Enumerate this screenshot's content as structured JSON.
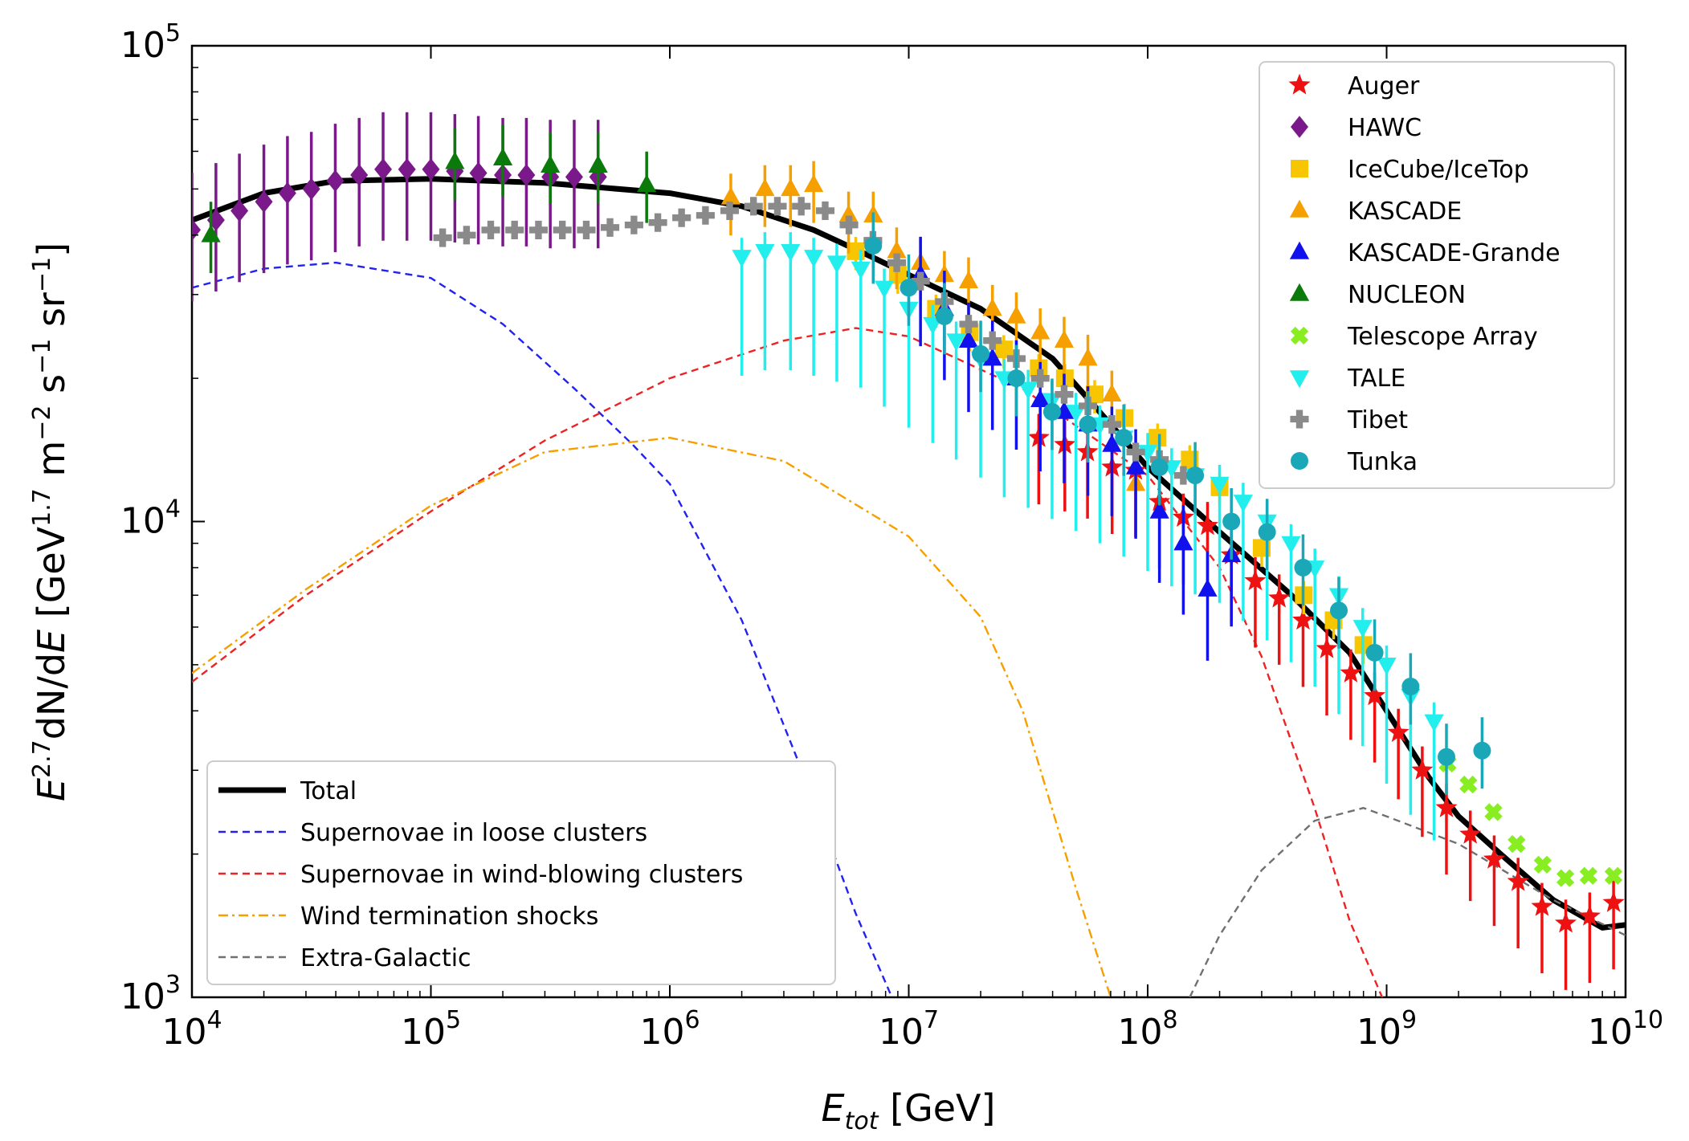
{
  "chart_data": {
    "type": "scatter",
    "xscale": "log",
    "yscale": "log",
    "xlim": [
      10000,
      10000000000
    ],
    "ylim": [
      1000,
      100000
    ],
    "x_label_prefix": "E",
    "x_label_sub": "tot",
    "x_label_unit": "[GeV]",
    "y_label_prefix": "E",
    "y_label_exp": "2.7",
    "y_label_mid": "dN/d",
    "y_label_E": "E",
    "y_label_unit_open": "[GeV",
    "y_label_unit_exp": "1.7",
    "y_label_m": "m",
    "y_label_m_exp": "−2",
    "y_label_s": "s",
    "y_label_s_exp": "−1",
    "y_label_sr": "sr",
    "y_label_sr_exp": "−1",
    "y_label_close": "]",
    "x_ticks": [
      {
        "base": "10",
        "exp": "4",
        "value": 10000
      },
      {
        "base": "10",
        "exp": "5",
        "value": 100000
      },
      {
        "base": "10",
        "exp": "6",
        "value": 1000000
      },
      {
        "base": "10",
        "exp": "7",
        "value": 10000000
      },
      {
        "base": "10",
        "exp": "8",
        "value": 100000000
      },
      {
        "base": "10",
        "exp": "9",
        "value": 1000000000
      },
      {
        "base": "10",
        "exp": "10",
        "value": 10000000000
      }
    ],
    "y_ticks": [
      {
        "base": "10",
        "exp": "3",
        "value": 1000
      },
      {
        "base": "10",
        "exp": "4",
        "value": 10000
      },
      {
        "base": "10",
        "exp": "5",
        "value": 100000
      }
    ],
    "curves": [
      {
        "name": "Total",
        "color": "#000000",
        "style": "solid",
        "x": [
          10000,
          20000,
          40000,
          100000,
          300000,
          1000000,
          2000000,
          4000000,
          7000000,
          10000000,
          20000000,
          40000000,
          70000000,
          100000000,
          200000000,
          400000000,
          700000000,
          1000000000,
          1500000000,
          2000000000,
          3000000000,
          5000000000,
          8000000000,
          10000000000
        ],
        "y": [
          43000,
          49000,
          52000,
          52500,
          51500,
          49000,
          46000,
          41000,
          36000,
          33000,
          28000,
          22000,
          16000,
          13000,
          9500,
          7000,
          5300,
          4000,
          2900,
          2400,
          2000,
          1600,
          1400,
          1420
        ]
      },
      {
        "name": "Supernovae in loose clusters",
        "color": "#2222ee",
        "style": "dash",
        "x": [
          10000,
          20000,
          40000,
          100000,
          200000,
          400000,
          700000,
          1000000,
          2000000,
          4000000,
          6000000,
          8500000
        ],
        "y": [
          31000,
          34000,
          35000,
          32500,
          26000,
          19000,
          14500,
          12000,
          6200,
          2600,
          1500,
          1000
        ]
      },
      {
        "name": "Supernovae in wind-blowing clusters",
        "color": "#ee2222",
        "style": "dash",
        "x": [
          10000,
          30000,
          100000,
          300000,
          1000000,
          3000000,
          6000000,
          10000000,
          30000000,
          100000000,
          200000000,
          300000000,
          500000000,
          700000000,
          1000000000
        ],
        "y": [
          4600,
          7000,
          10500,
          14800,
          20000,
          24000,
          25500,
          24500,
          19000,
          12500,
          8000,
          5200,
          2500,
          1450,
          950
        ]
      },
      {
        "name": "Wind termination shocks",
        "color": "#f5a000",
        "style": "dashdot",
        "x": [
          10000,
          30000,
          100000,
          300000,
          1000000,
          3000000,
          10000000,
          20000000,
          30000000,
          50000000,
          70000000
        ],
        "y": [
          4800,
          7200,
          10800,
          14000,
          15000,
          13400,
          9300,
          6300,
          4000,
          1700,
          1000
        ]
      },
      {
        "name": "Extra-Galactic",
        "color": "#707070",
        "style": "dash",
        "x": [
          150000000,
          200000000,
          300000000,
          500000000,
          800000000,
          1000000000,
          2000000000,
          5000000000,
          10000000000
        ],
        "y": [
          1000,
          1350,
          1850,
          2350,
          2500,
          2400,
          2100,
          1600,
          1350
        ]
      }
    ],
    "series": [
      {
        "name": "Auger",
        "marker": "star",
        "color": "#ee1111",
        "x": [
          35000000,
          45000000,
          56000000,
          71000000,
          89000000,
          112000000,
          141000000,
          178000000,
          224000000,
          282000000,
          355000000,
          447000000,
          562000000,
          708000000,
          891000000,
          1120000000,
          1410000000,
          1780000000,
          2240000000,
          2820000000,
          3550000000,
          4470000000,
          5620000000,
          7080000000,
          8910000000
        ],
        "y": [
          15000,
          14500,
          14000,
          13000,
          12800,
          11000,
          10200,
          9800,
          8500,
          7500,
          6900,
          6200,
          5400,
          4800,
          4300,
          3600,
          3000,
          2500,
          2200,
          1950,
          1750,
          1550,
          1430,
          1480,
          1580
        ]
      },
      {
        "name": "HAWC",
        "marker": "diamond",
        "color": "#7a1a8a",
        "x": [
          10000,
          12600,
          15800,
          20000,
          25100,
          31600,
          39800,
          50100,
          63100,
          79400,
          100000,
          126000,
          158000,
          200000,
          251000,
          316000,
          398000,
          501000
        ],
        "y": [
          41000,
          43000,
          45000,
          47000,
          49000,
          50000,
          52000,
          53500,
          55000,
          55000,
          55000,
          54500,
          54000,
          53500,
          53500,
          53000,
          53000,
          53000
        ]
      },
      {
        "name": "IceCube/IceTop",
        "marker": "square",
        "color": "#f7c600",
        "x": [
          6000000,
          9000000,
          13000000,
          18000000,
          25000000,
          35000000,
          45000000,
          60000000,
          80000000,
          110000000,
          150000000,
          200000000,
          300000000,
          450000000,
          600000000,
          800000000
        ],
        "y": [
          37000,
          33000,
          28000,
          25000,
          23000,
          21000,
          20000,
          18500,
          16500,
          15000,
          13500,
          11800,
          8800,
          7000,
          6200,
          5500
        ]
      },
      {
        "name": "KASCADE",
        "marker": "triangle-up",
        "color": "#f5a000",
        "x": [
          1800000,
          2500000,
          3200000,
          4000000,
          5600000,
          7100000,
          8900000,
          11200000,
          14100000,
          17800000,
          22400000,
          28200000,
          35500000,
          44700000,
          56200000,
          70800000,
          89100000
        ],
        "y": [
          48000,
          50000,
          50000,
          51000,
          44000,
          44000,
          37000,
          35000,
          33000,
          32000,
          28000,
          27000,
          25000,
          24000,
          22000,
          18500,
          12000
        ]
      },
      {
        "name": "KASCADE-Grande",
        "marker": "triangle-up",
        "color": "#1111ee",
        "x": [
          11200000,
          14100000,
          17800000,
          22400000,
          28200000,
          35500000,
          44700000,
          56200000,
          70800000,
          89100000,
          112000000,
          141000000,
          178000000,
          224000000
        ],
        "y": [
          33000,
          28000,
          24000,
          22000,
          20000,
          18000,
          17000,
          16000,
          14500,
          13000,
          10500,
          9000,
          7200,
          8500
        ]
      },
      {
        "name": "NUCLEON",
        "marker": "triangle-up",
        "color": "#0a7a0a",
        "x": [
          12000,
          126000,
          200000,
          316000,
          501000,
          800000
        ],
        "y": [
          40000,
          57000,
          58000,
          56000,
          56000,
          51000
        ]
      },
      {
        "name": "Telescope Array",
        "marker": "cross",
        "color": "#88ee22",
        "x": [
          1800000000,
          2200000000,
          2800000000,
          3500000000,
          4500000000,
          5600000000,
          7000000000,
          8900000000
        ],
        "y": [
          3100,
          2800,
          2450,
          2100,
          1900,
          1780,
          1800,
          1800
        ]
      },
      {
        "name": "TALE",
        "marker": "triangle-down",
        "color": "#22eeee",
        "x": [
          2000000,
          2500000,
          3200000,
          4000000,
          5000000,
          6300000,
          7900000,
          10000000,
          12600000,
          15800000,
          20000000,
          25100000,
          31600000,
          39800000,
          50100000,
          63100000,
          79400000,
          100000000,
          126000000,
          158000000,
          200000000,
          251000000,
          316000000,
          398000000,
          501000000,
          631000000,
          794000000,
          1000000000,
          1260000000,
          1580000000
        ],
        "y": [
          36000,
          37000,
          37000,
          36000,
          35000,
          34000,
          31000,
          28000,
          26000,
          24000,
          22000,
          20000,
          19000,
          18000,
          17000,
          16000,
          15000,
          14000,
          13000,
          12500,
          12000,
          11000,
          10000,
          9000,
          8000,
          7000,
          6000,
          5000,
          4300,
          3800
        ]
      },
      {
        "name": "Tibet",
        "marker": "plus",
        "color": "#8a8a8a",
        "x": [
          112000,
          141000,
          178000,
          224000,
          282000,
          355000,
          447000,
          562000,
          708000,
          891000,
          1120000,
          1410000,
          1780000,
          2240000,
          2820000,
          3550000,
          4470000,
          5620000,
          7080000,
          8910000,
          11200000,
          14100000,
          17800000,
          22400000,
          28200000,
          35500000,
          44700000,
          56200000,
          70800000,
          89100000,
          112000000,
          141000000
        ],
        "y": [
          39500,
          40000,
          41000,
          41000,
          41000,
          41000,
          41000,
          41500,
          42000,
          42500,
          43500,
          44000,
          45000,
          46000,
          46000,
          46000,
          45000,
          42000,
          39000,
          35000,
          32000,
          29000,
          26000,
          24000,
          22000,
          20000,
          18500,
          17500,
          16000,
          14000,
          13500,
          12500
        ]
      },
      {
        "name": "Tunka",
        "marker": "circle",
        "color": "#1aa8b8",
        "x": [
          7100000,
          10000000,
          14100000,
          20000000,
          28200000,
          39800000,
          56200000,
          79400000,
          112000000,
          158000000,
          224000000,
          316000000,
          447000000,
          631000000,
          891000000,
          1260000000,
          1780000000,
          2510000000
        ],
        "y": [
          38000,
          31000,
          27000,
          22500,
          20000,
          17000,
          16000,
          15000,
          13000,
          12500,
          10000,
          9500,
          8000,
          6500,
          5300,
          4500,
          3200,
          3300
        ]
      }
    ],
    "legend_curves_location": "lower-left",
    "legend_series_location": "upper-right"
  }
}
